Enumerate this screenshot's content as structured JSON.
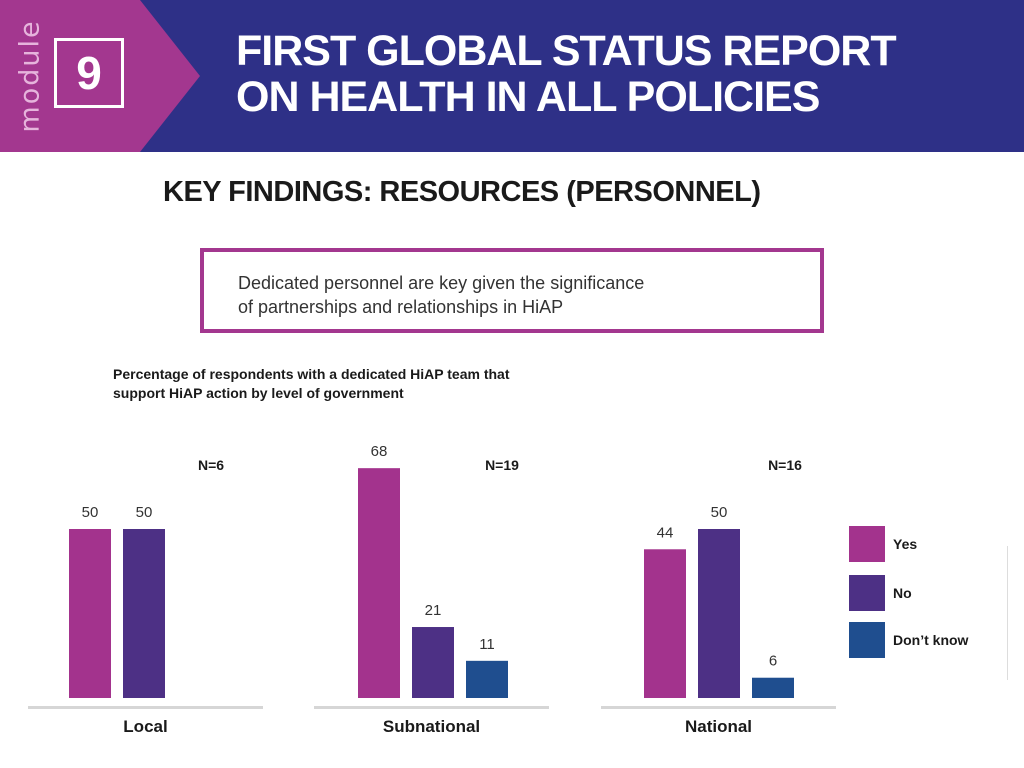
{
  "header": {
    "module_word": "module",
    "module_number": "9",
    "title_lines": [
      "FIRST GLOBAL STATUS REPORT",
      "ON HEALTH IN ALL POLICIES"
    ]
  },
  "section_title": "KEY FINDINGS: RESOURCES (PERSONNEL)",
  "callout": {
    "lines": [
      "Dedicated personnel are key given the significance",
      "of partnerships and relationships in HiAP"
    ]
  },
  "colors": {
    "header_bg": "#2e3087",
    "accent": "#a3378f",
    "yes": "#a3338d",
    "no": "#4d3085",
    "dont_know": "#1f4e8f"
  },
  "chart_data": {
    "type": "bar",
    "title_lines": [
      "Percentage of respondents with a dedicated HiAP team that",
      "support HiAP action by level of government"
    ],
    "ylim": [
      0,
      100
    ],
    "groups": [
      {
        "name": "Local",
        "n_label": "N=6",
        "values": [
          50,
          50,
          null
        ]
      },
      {
        "name": "Subnational",
        "n_label": "N=19",
        "values": [
          68,
          21,
          11
        ]
      },
      {
        "name": "National",
        "n_label": "N=16",
        "values": [
          44,
          50,
          6
        ]
      }
    ],
    "series": [
      {
        "name": "Yes",
        "color": "#a3338d"
      },
      {
        "name": "No",
        "color": "#4d3085"
      },
      {
        "name": "Don’t know",
        "color": "#1f4e8f"
      }
    ],
    "legend": "right"
  }
}
